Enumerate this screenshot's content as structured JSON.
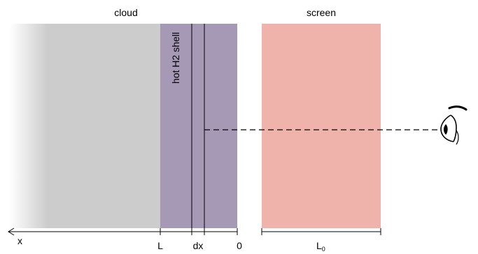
{
  "labels": {
    "cloud": "cloud",
    "screen": "screen",
    "shell": "hot H2 shell",
    "x_axis": "x",
    "L": "L",
    "dx": "dx",
    "zero": "0",
    "L0_main": "L",
    "L0_sub": "0"
  },
  "colors": {
    "cloud_fade_start": "#ffffff",
    "cloud_fill": "#cccccc",
    "shell_fill": "#a699b6",
    "screen_fill": "#efb3ab",
    "line": "#000000"
  },
  "icons": {
    "observer": "eye-icon"
  }
}
